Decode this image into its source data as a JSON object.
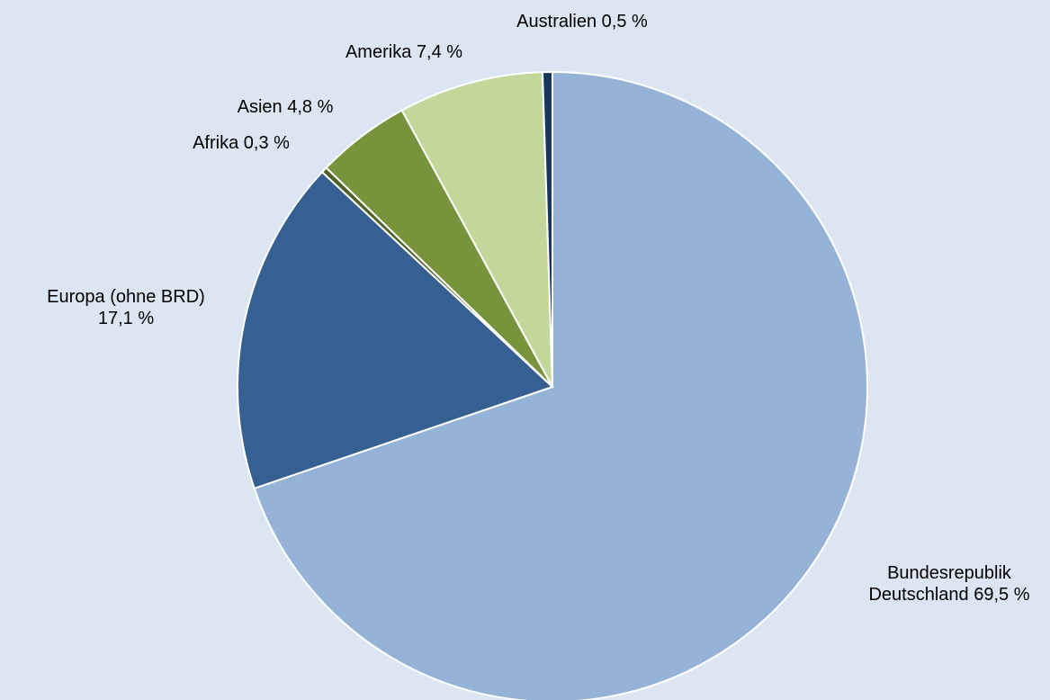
{
  "chart_data": {
    "type": "pie",
    "categories": [
      "Bundesrepublik Deutschland",
      "Europa (ohne BRD)",
      "Afrika",
      "Asien",
      "Amerika",
      "Australien"
    ],
    "values": [
      69.5,
      17.1,
      0.3,
      4.8,
      7.4,
      0.5
    ],
    "value_labels": [
      "69,5 %",
      "17,1 %",
      "0,3 %",
      "4,8 %",
      "7,4 %",
      "0,5 %"
    ],
    "colors": [
      "#95b3d7",
      "#366092",
      "#4f6228",
      "#77933c",
      "#c4d79b",
      "#17375e"
    ]
  }
}
